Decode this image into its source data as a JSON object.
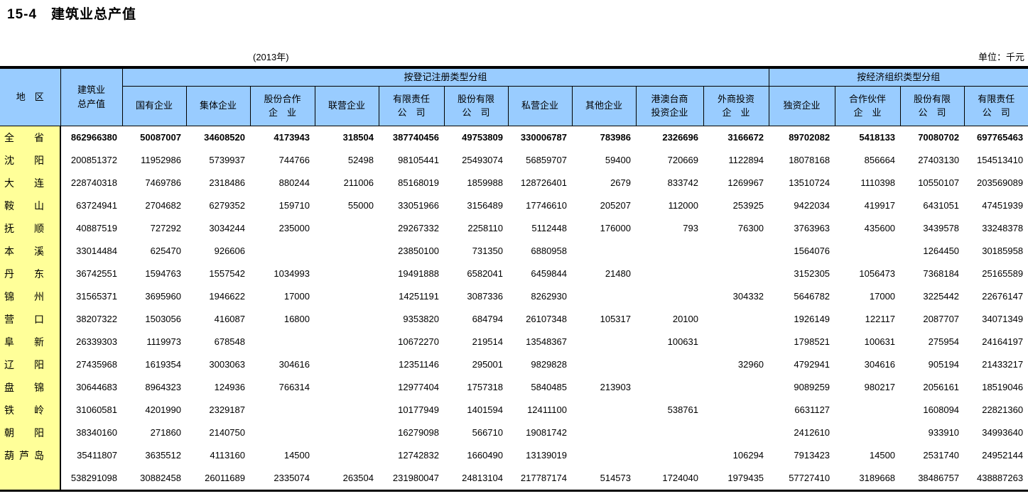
{
  "page": {
    "title": "15-4　建筑业总产值",
    "year_note": "(2013年)",
    "unit_note": "单位：千元"
  },
  "colors": {
    "header_bg": "#99CCFF",
    "region_bg": "#FFFF99",
    "border": "#000000"
  },
  "table": {
    "corner_label": "地　区",
    "total_label": "建筑业\n总产值",
    "groups": [
      {
        "label": "按登记注册类型分组",
        "span": 10
      },
      {
        "label": "按经济组织类型分组",
        "span": 4
      }
    ],
    "columns": [
      "国有企业",
      "集体企业",
      "股份合作\n企　业",
      "联营企业",
      "有限责任\n公　司",
      "股份有限\n公　司",
      "私营企业",
      "其他企业",
      "港澳台商\n投资企业",
      "外商投资\n企　业",
      "独资企业",
      "合作伙伴\n企　业",
      "股份有限\n公　司",
      "有限责任\n公　司"
    ],
    "rows": [
      {
        "region": "全省",
        "bold": true,
        "values": [
          "862966380",
          "50087007",
          "34608520",
          "4173943",
          "318504",
          "387740456",
          "49753809",
          "330006787",
          "783986",
          "2326696",
          "3166672",
          "89702082",
          "5418133",
          "70080702",
          "697765463"
        ]
      },
      {
        "region": "沈阳",
        "bold": false,
        "values": [
          "200851372",
          "11952986",
          "5739937",
          "744766",
          "52498",
          "98105441",
          "25493074",
          "56859707",
          "59400",
          "720669",
          "1122894",
          "18078168",
          "856664",
          "27403130",
          "154513410"
        ]
      },
      {
        "region": "大连",
        "bold": false,
        "values": [
          "228740318",
          "7469786",
          "2318486",
          "880244",
          "211006",
          "85168019",
          "1859988",
          "128726401",
          "2679",
          "833742",
          "1269967",
          "13510724",
          "1110398",
          "10550107",
          "203569089"
        ]
      },
      {
        "region": "鞍山",
        "bold": false,
        "values": [
          "63724941",
          "2704682",
          "6279352",
          "159710",
          "55000",
          "33051966",
          "3156489",
          "17746610",
          "205207",
          "112000",
          "253925",
          "9422034",
          "419917",
          "6431051",
          "47451939"
        ]
      },
      {
        "region": "抚顺",
        "bold": false,
        "values": [
          "40887519",
          "727292",
          "3034244",
          "235000",
          "",
          "29267332",
          "2258110",
          "5112448",
          "176000",
          "793",
          "76300",
          "3763963",
          "435600",
          "3439578",
          "33248378"
        ]
      },
      {
        "region": "本溪",
        "bold": false,
        "values": [
          "33014484",
          "625470",
          "926606",
          "",
          "",
          "23850100",
          "731350",
          "6880958",
          "",
          "",
          "",
          "1564076",
          "",
          "1264450",
          "30185958"
        ]
      },
      {
        "region": "丹东",
        "bold": false,
        "values": [
          "36742551",
          "1594763",
          "1557542",
          "1034993",
          "",
          "19491888",
          "6582041",
          "6459844",
          "21480",
          "",
          "",
          "3152305",
          "1056473",
          "7368184",
          "25165589"
        ]
      },
      {
        "region": "锦州",
        "bold": false,
        "values": [
          "31565371",
          "3695960",
          "1946622",
          "17000",
          "",
          "14251191",
          "3087336",
          "8262930",
          "",
          "",
          "304332",
          "5646782",
          "17000",
          "3225442",
          "22676147"
        ]
      },
      {
        "region": "营口",
        "bold": false,
        "values": [
          "38207322",
          "1503056",
          "416087",
          "16800",
          "",
          "9353820",
          "684794",
          "26107348",
          "105317",
          "20100",
          "",
          "1926149",
          "122117",
          "2087707",
          "34071349"
        ]
      },
      {
        "region": "阜新",
        "bold": false,
        "values": [
          "26339303",
          "1119973",
          "678548",
          "",
          "",
          "10672270",
          "219514",
          "13548367",
          "",
          "100631",
          "",
          "1798521",
          "100631",
          "275954",
          "24164197"
        ]
      },
      {
        "region": "辽阳",
        "bold": false,
        "values": [
          "27435968",
          "1619354",
          "3003063",
          "304616",
          "",
          "12351146",
          "295001",
          "9829828",
          "",
          "",
          "32960",
          "4792941",
          "304616",
          "905194",
          "21433217"
        ]
      },
      {
        "region": "盘锦",
        "bold": false,
        "values": [
          "30644683",
          "8964323",
          "124936",
          "766314",
          "",
          "12977404",
          "1757318",
          "5840485",
          "213903",
          "",
          "",
          "9089259",
          "980217",
          "2056161",
          "18519046"
        ]
      },
      {
        "region": "铁岭",
        "bold": false,
        "values": [
          "31060581",
          "4201990",
          "2329187",
          "",
          "",
          "10177949",
          "1401594",
          "12411100",
          "",
          "538761",
          "",
          "6631127",
          "",
          "1608094",
          "22821360"
        ]
      },
      {
        "region": "朝阳",
        "bold": false,
        "values": [
          "38340160",
          "271860",
          "2140750",
          "",
          "",
          "16279098",
          "566710",
          "19081742",
          "",
          "",
          "",
          "2412610",
          "",
          "933910",
          "34993640"
        ]
      },
      {
        "region": "葫芦岛",
        "bold": false,
        "values": [
          "35411807",
          "3635512",
          "4113160",
          "14500",
          "",
          "12742832",
          "1660490",
          "13139019",
          "",
          "",
          "106294",
          "7913423",
          "14500",
          "2531740",
          "24952144"
        ]
      },
      {
        "region": "",
        "bold": false,
        "values": [
          "538291098",
          "30882458",
          "26011689",
          "2335074",
          "263504",
          "231980047",
          "24813104",
          "217787174",
          "514573",
          "1724040",
          "1979435",
          "57727410",
          "3189668",
          "38486757",
          "438887263"
        ]
      }
    ]
  }
}
